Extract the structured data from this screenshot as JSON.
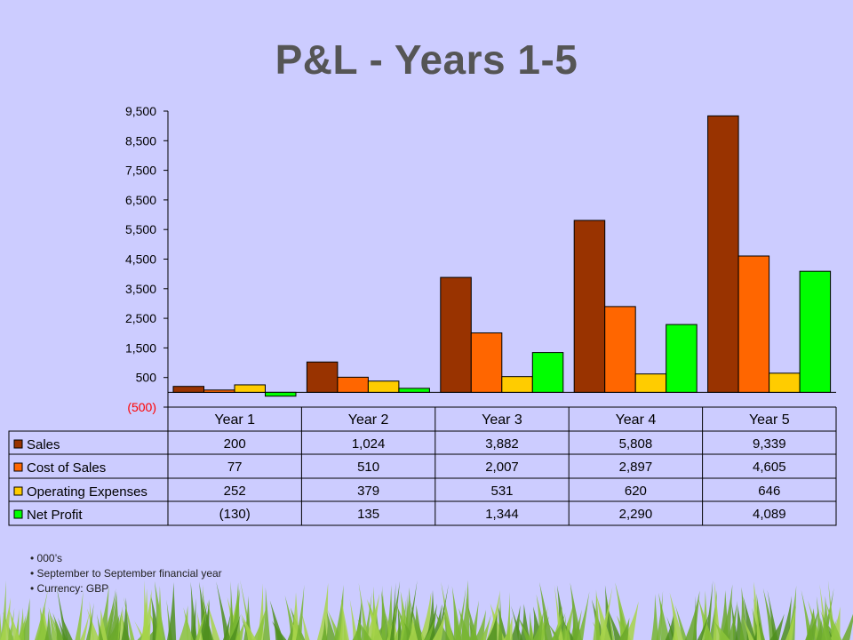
{
  "title": "P&L - Years 1-5",
  "notes": [
    "000’s",
    "September to September financial year",
    "Currency: GBP"
  ],
  "chart_data": {
    "type": "bar",
    "categories": [
      "Year 1",
      "Year 2",
      "Year 3",
      "Year 4",
      "Year 5"
    ],
    "series": [
      {
        "name": "Sales",
        "values": [
          200,
          1024,
          3882,
          5808,
          9339
        ],
        "color": "#993300"
      },
      {
        "name": "Cost of Sales",
        "values": [
          77,
          510,
          2007,
          2897,
          4605
        ],
        "color": "#ff6600"
      },
      {
        "name": "Operating Expenses",
        "values": [
          252,
          379,
          531,
          620,
          646
        ],
        "color": "#ffcc00"
      },
      {
        "name": "Net Profit",
        "values": [
          -130,
          135,
          1344,
          2290,
          4089
        ],
        "color": "#00ff00"
      }
    ],
    "y_ticks": [
      "9,500",
      "8,500",
      "7,500",
      "6,500",
      "5,500",
      "4,500",
      "3,500",
      "2,500",
      "1,500",
      "500",
      "(500)"
    ],
    "ylim": [
      -500,
      9500
    ],
    "table": [
      [
        "200",
        "1,024",
        "3,882",
        "5,808",
        "9,339"
      ],
      [
        "77",
        "510",
        "2,007",
        "2,897",
        "4,605"
      ],
      [
        "252",
        "379",
        "531",
        "620",
        "646"
      ],
      [
        "(130)",
        "135",
        "1,344",
        "2,290",
        "4,089"
      ]
    ],
    "grid": false,
    "legend": "data-table"
  }
}
